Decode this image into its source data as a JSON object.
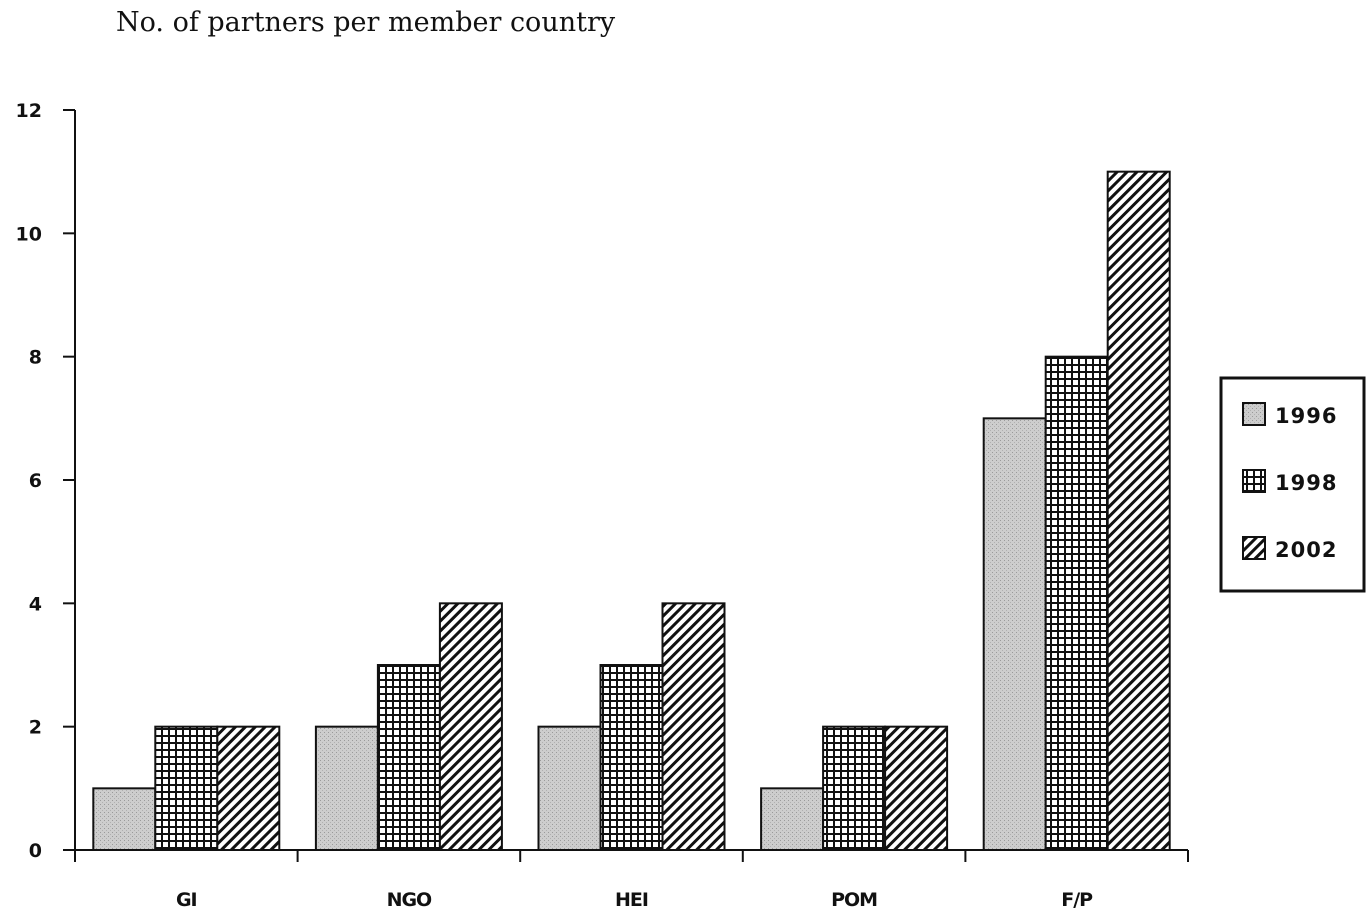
{
  "chart_data": {
    "type": "bar",
    "title": "",
    "ylabel": "No. of partners per member country",
    "xlabel": "",
    "categories": [
      "GI",
      "NGO",
      "HEI",
      "POM",
      "F/P"
    ],
    "series": [
      {
        "name": "1996",
        "values": [
          1,
          2,
          2,
          1,
          7
        ],
        "color": "#c8c8c8",
        "pattern": "dotted-gray"
      },
      {
        "name": "1998",
        "values": [
          2,
          3,
          3,
          2,
          8
        ],
        "color": "#ffffff",
        "pattern": "grid"
      },
      {
        "name": "2002",
        "values": [
          2,
          4,
          4,
          2,
          11
        ],
        "color": "#ffffff",
        "pattern": "diagonal-hatch"
      }
    ],
    "ylim": [
      0,
      12
    ],
    "yticks": [
      "0",
      "2",
      "4",
      "6",
      "8",
      "10",
      "12"
    ],
    "legend_position": "right",
    "grid": false
  }
}
